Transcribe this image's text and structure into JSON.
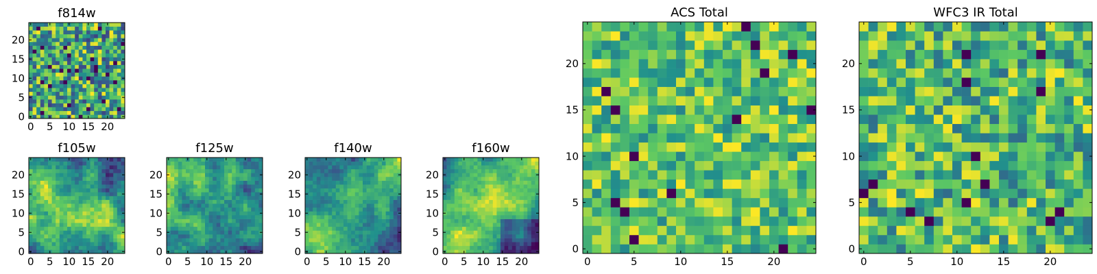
{
  "figure": {
    "background": "#ffffff",
    "colormap": "viridis",
    "colormap_stops": [
      "#440154",
      "#3b528b",
      "#21918c",
      "#5ec962",
      "#fde725"
    ]
  },
  "chart_data": [
    {
      "type": "heatmap",
      "title": "f814w",
      "grid_size": 25,
      "xticks": [
        0,
        5,
        10,
        15,
        20
      ],
      "yticks": [
        0,
        5,
        10,
        15,
        20
      ],
      "xlim": [
        -0.5,
        24.5
      ],
      "ylim": [
        -0.5,
        24.5
      ],
      "pattern": "uniform noise",
      "value_range": [
        0.2,
        1.0
      ],
      "seed": 814
    },
    {
      "type": "heatmap",
      "title": "f105w",
      "grid_size": 25,
      "xticks": [
        0,
        5,
        10,
        15,
        20
      ],
      "yticks": [
        0,
        5,
        10,
        15,
        20
      ],
      "xlim": [
        -0.5,
        24.5
      ],
      "ylim": [
        -0.5,
        24.5
      ],
      "pattern": "smooth, bright band diagonal from lower-left to center",
      "value_range": [
        0.1,
        1.0
      ],
      "seed": 105
    },
    {
      "type": "heatmap",
      "title": "f125w",
      "grid_size": 25,
      "xticks": [
        0,
        5,
        10,
        15,
        20
      ],
      "yticks": [
        0,
        5,
        10,
        15,
        20
      ],
      "xlim": [
        -0.5,
        24.5
      ],
      "ylim": [
        -0.5,
        24.5
      ],
      "pattern": "smooth, bright upper-left, darker lower-right",
      "value_range": [
        0.1,
        1.0
      ],
      "seed": 125
    },
    {
      "type": "heatmap",
      "title": "f140w",
      "grid_size": 25,
      "xticks": [
        0,
        5,
        10,
        15,
        20
      ],
      "yticks": [
        0,
        5,
        10,
        15,
        20
      ],
      "xlim": [
        -0.5,
        24.5
      ],
      "ylim": [
        -0.5,
        24.5
      ],
      "pattern": "smooth, bright diagonal band lower-left to upper-right",
      "value_range": [
        0.1,
        1.0
      ],
      "seed": 140
    },
    {
      "type": "heatmap",
      "title": "f160w",
      "grid_size": 25,
      "xticks": [
        0,
        5,
        10,
        15,
        20
      ],
      "yticks": [
        0,
        5,
        10,
        15,
        20
      ],
      "xlim": [
        -0.5,
        24.5
      ],
      "ylim": [
        -0.5,
        24.5
      ],
      "pattern": "smooth, bright diagonal band, dark lower-right corner",
      "value_range": [
        0.0,
        1.0
      ],
      "seed": 160
    },
    {
      "type": "heatmap",
      "title": "ACS Total",
      "grid_size": 25,
      "xticks": [
        0,
        5,
        10,
        15,
        20
      ],
      "yticks": [
        0,
        5,
        10,
        15,
        20
      ],
      "xlim": [
        -0.5,
        24.5
      ],
      "ylim": [
        -0.5,
        24.5
      ],
      "pattern": "noise, mostly green-yellow with sparse dark cells",
      "value_range": [
        0.45,
        1.0
      ],
      "seed": 2814
    },
    {
      "type": "heatmap",
      "title": "WFC3 IR Total",
      "grid_size": 25,
      "xticks": [
        0,
        5,
        10,
        15,
        20
      ],
      "yticks": [
        0,
        5,
        10,
        15,
        20
      ],
      "xlim": [
        -0.5,
        24.5
      ],
      "ylim": [
        -0.5,
        24.5
      ],
      "pattern": "noise, green dominant with some dark and bright cells",
      "value_range": [
        0.35,
        1.0
      ],
      "seed": 3160
    }
  ]
}
